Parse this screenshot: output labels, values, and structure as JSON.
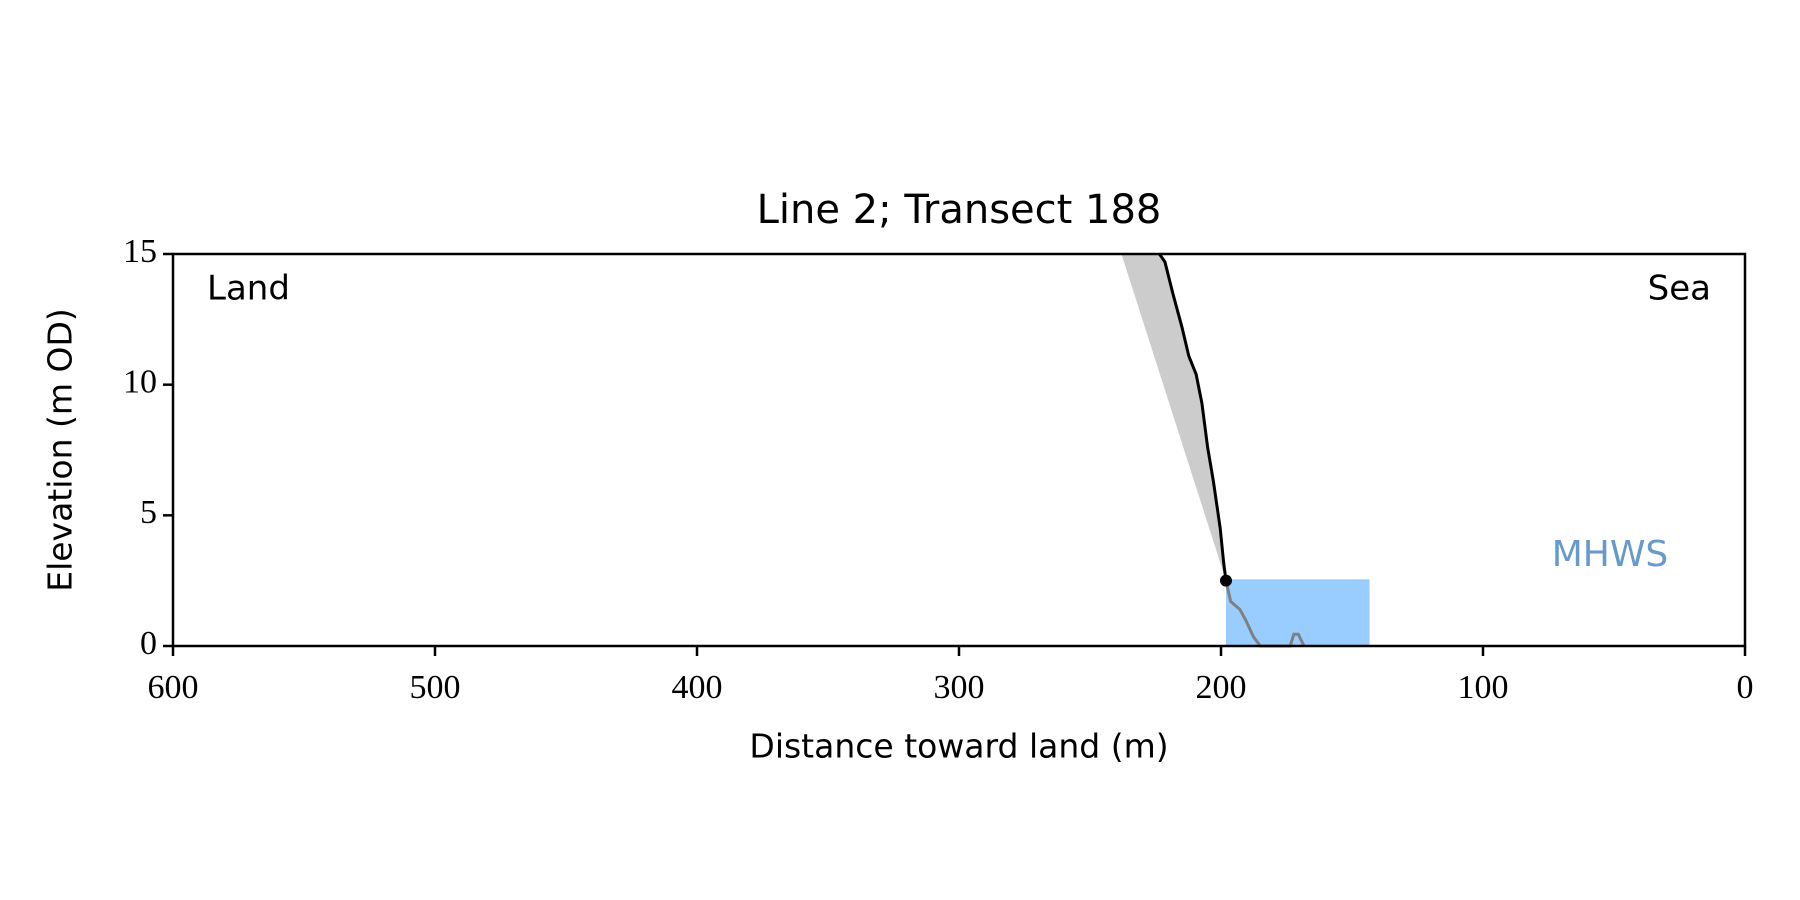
{
  "chart_data": {
    "type": "line",
    "title": "Line 2; Transect 188",
    "x_label": "Distance toward land (m)",
    "y_label": "Elevation (m OD)",
    "xlim": [
      600,
      0
    ],
    "xticks": [
      600,
      500,
      400,
      300,
      200,
      100,
      0
    ],
    "ylim": [
      0,
      15
    ],
    "yticks": [
      0,
      5,
      10,
      15
    ],
    "annotations": [
      "Land",
      "Sea"
    ],
    "series": [
      {
        "color": "#000000",
        "x": [
          223.5,
          221.4,
          218.4,
          214.9,
          212.3,
          209.5,
          207.3,
          205.1,
          202.9,
          200.3,
          199.0,
          198.1
        ],
        "values": [
          15,
          14.7,
          13.5,
          12.2,
          11.1,
          10.4,
          9.3,
          7.6,
          6.3,
          4.5,
          3.2,
          2.5
        ]
      },
      {
        "color": "#808080",
        "x": [
          198.1,
          196.3,
          192.8,
          190.6,
          187.6,
          185.0,
          173.6,
          172.2,
          170.5,
          168.3
        ],
        "values": [
          2.5,
          1.7,
          1.4,
          1.0,
          0.35,
          0,
          0,
          0.45,
          0.45,
          0
        ]
      }
    ],
    "wedge": {
      "color": "#cccccc",
      "x": [
        238,
        198.1
      ],
      "values": [
        15,
        2.5
      ]
    },
    "point": {
      "color": "#000000",
      "x": 198.1,
      "value": 2.5
    },
    "mhws": {
      "label": "MHWS",
      "level": 2.55,
      "x": [
        198.1,
        143.3
      ],
      "color": "#99ccff",
      "label_color": "#6699cc"
    }
  }
}
